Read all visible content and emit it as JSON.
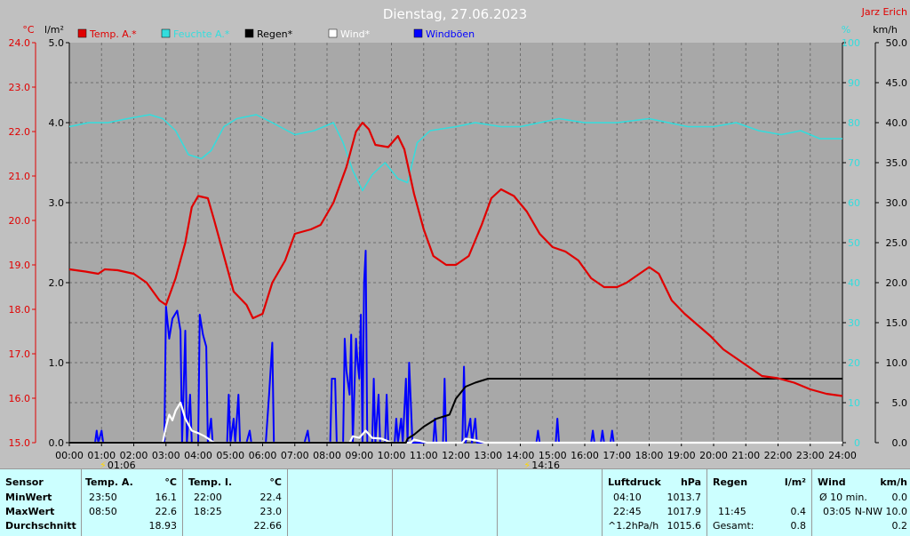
{
  "title": "Dienstag, 27.06.2023",
  "author": "Jarz Erich",
  "colors": {
    "bg": "#c0c0c0",
    "plot": "#a8a8a8",
    "grid": "#6e6e6e",
    "temp": "#e00000",
    "humidity": "#33dddd",
    "rain": "#000000",
    "wind": "#ffffff",
    "gust": "#0000ff",
    "title": "#ffffff",
    "panel": "#ccffff"
  },
  "axis_units": {
    "temp": "°C",
    "rain": "l/m²",
    "humidity": "%",
    "wind": "km/h"
  },
  "chart_data": {
    "type": "line",
    "title": "Dienstag, 27.06.2023",
    "x_ticks": [
      "00:00",
      "01:00",
      "02:00",
      "03:00",
      "04:00",
      "05:00",
      "06:00",
      "07:00",
      "08:00",
      "09:00",
      "10:00",
      "11:00",
      "12:00",
      "13:00",
      "14:00",
      "15:00",
      "16:00",
      "17:00",
      "18:00",
      "19:00",
      "20:00",
      "21:00",
      "22:00",
      "23:00",
      "24:00"
    ],
    "y_temp_ticks": [
      "15.0",
      "16.0",
      "17.0",
      "18.0",
      "19.0",
      "20.0",
      "21.0",
      "22.0",
      "23.0",
      "24.0"
    ],
    "y_rain_ticks": [
      "0.0",
      "1.0",
      "2.0",
      "3.0",
      "4.0",
      "5.0"
    ],
    "y_hum_ticks": [
      "0",
      "10",
      "20",
      "30",
      "40",
      "50",
      "60",
      "70",
      "80",
      "90",
      "100"
    ],
    "y_wind_ticks": [
      "0.0",
      "5.0",
      "10.0",
      "15.0",
      "20.0",
      "25.0",
      "30.0",
      "35.0",
      "40.0",
      "45.0",
      "50.0"
    ],
    "ylim_temp": [
      15,
      24
    ],
    "ylim_rain": [
      0,
      5
    ],
    "ylim_humidity": [
      0,
      100
    ],
    "ylim_wind": [
      0,
      50
    ],
    "legend": [
      "Temp. A.*",
      "Feuchte A.*",
      "Regen*",
      "Wind*",
      "Windböen"
    ],
    "annotations": [
      {
        "label": "01:06",
        "x": 1.1
      },
      {
        "label": "14:16",
        "x": 14.27
      }
    ],
    "grid": true,
    "series": [
      {
        "name": "Temp. A.*",
        "axis": "temp",
        "points": [
          [
            0,
            18.9
          ],
          [
            0.5,
            18.85
          ],
          [
            0.9,
            18.8
          ],
          [
            1.1,
            18.9
          ],
          [
            1.5,
            18.88
          ],
          [
            2.0,
            18.8
          ],
          [
            2.4,
            18.6
          ],
          [
            2.8,
            18.2
          ],
          [
            3.0,
            18.1
          ],
          [
            3.3,
            18.7
          ],
          [
            3.6,
            19.5
          ],
          [
            3.8,
            20.3
          ],
          [
            4.0,
            20.55
          ],
          [
            4.3,
            20.5
          ],
          [
            4.5,
            20.0
          ],
          [
            4.8,
            19.2
          ],
          [
            5.1,
            18.4
          ],
          [
            5.5,
            18.1
          ],
          [
            5.7,
            17.8
          ],
          [
            6.0,
            17.9
          ],
          [
            6.3,
            18.6
          ],
          [
            6.7,
            19.1
          ],
          [
            7.0,
            19.7
          ],
          [
            7.5,
            19.8
          ],
          [
            7.8,
            19.9
          ],
          [
            8.2,
            20.4
          ],
          [
            8.6,
            21.2
          ],
          [
            8.9,
            22.0
          ],
          [
            9.1,
            22.2
          ],
          [
            9.3,
            22.05
          ],
          [
            9.5,
            21.7
          ],
          [
            9.9,
            21.65
          ],
          [
            10.2,
            21.9
          ],
          [
            10.4,
            21.6
          ],
          [
            10.7,
            20.6
          ],
          [
            11.0,
            19.8
          ],
          [
            11.3,
            19.2
          ],
          [
            11.7,
            19.0
          ],
          [
            12.0,
            19.0
          ],
          [
            12.4,
            19.2
          ],
          [
            12.8,
            19.9
          ],
          [
            13.1,
            20.5
          ],
          [
            13.4,
            20.7
          ],
          [
            13.8,
            20.55
          ],
          [
            14.2,
            20.2
          ],
          [
            14.6,
            19.7
          ],
          [
            15.0,
            19.4
          ],
          [
            15.4,
            19.3
          ],
          [
            15.8,
            19.1
          ],
          [
            16.2,
            18.7
          ],
          [
            16.6,
            18.5
          ],
          [
            17.0,
            18.5
          ],
          [
            17.3,
            18.6
          ],
          [
            17.7,
            18.8
          ],
          [
            18.0,
            18.95
          ],
          [
            18.3,
            18.8
          ],
          [
            18.7,
            18.2
          ],
          [
            19.1,
            17.9
          ],
          [
            19.5,
            17.65
          ],
          [
            19.9,
            17.4
          ],
          [
            20.3,
            17.1
          ],
          [
            20.7,
            16.9
          ],
          [
            21.1,
            16.7
          ],
          [
            21.5,
            16.5
          ],
          [
            22.0,
            16.45
          ],
          [
            22.5,
            16.35
          ],
          [
            23.0,
            16.2
          ],
          [
            23.5,
            16.1
          ],
          [
            24,
            16.05
          ]
        ]
      },
      {
        "name": "Feuchte A.*",
        "axis": "humidity",
        "points": [
          [
            0,
            79
          ],
          [
            0.6,
            80
          ],
          [
            1.2,
            80
          ],
          [
            1.8,
            81
          ],
          [
            2.5,
            82
          ],
          [
            2.9,
            81
          ],
          [
            3.3,
            78
          ],
          [
            3.7,
            72
          ],
          [
            4.1,
            71
          ],
          [
            4.4,
            73
          ],
          [
            4.8,
            79
          ],
          [
            5.2,
            81
          ],
          [
            5.8,
            82
          ],
          [
            6.3,
            80
          ],
          [
            7.0,
            77
          ],
          [
            7.6,
            78
          ],
          [
            8.2,
            80
          ],
          [
            8.5,
            75
          ],
          [
            8.8,
            68
          ],
          [
            9.1,
            63
          ],
          [
            9.4,
            67
          ],
          [
            9.8,
            70
          ],
          [
            10.2,
            66
          ],
          [
            10.5,
            65
          ],
          [
            10.8,
            75
          ],
          [
            11.2,
            78
          ],
          [
            12.0,
            79
          ],
          [
            12.6,
            80
          ],
          [
            13.4,
            79
          ],
          [
            14.0,
            79
          ],
          [
            14.6,
            80
          ],
          [
            15.2,
            81
          ],
          [
            16.0,
            80
          ],
          [
            17.0,
            80
          ],
          [
            18.0,
            81
          ],
          [
            18.6,
            80
          ],
          [
            19.2,
            79
          ],
          [
            20.0,
            79
          ],
          [
            20.7,
            80
          ],
          [
            21.4,
            78
          ],
          [
            22.1,
            77
          ],
          [
            22.7,
            78
          ],
          [
            23.3,
            76
          ],
          [
            24,
            76
          ]
        ]
      },
      {
        "name": "Regen*",
        "axis": "rain",
        "points": [
          [
            0,
            0
          ],
          [
            10.45,
            0
          ],
          [
            10.5,
            0.05
          ],
          [
            10.7,
            0.1
          ],
          [
            11.0,
            0.2
          ],
          [
            11.4,
            0.3
          ],
          [
            11.8,
            0.35
          ],
          [
            12.0,
            0.55
          ],
          [
            12.3,
            0.7
          ],
          [
            12.6,
            0.75
          ],
          [
            13.0,
            0.8
          ],
          [
            24,
            0.8
          ]
        ]
      },
      {
        "name": "Wind*",
        "axis": "wind",
        "points": [
          [
            0,
            0
          ],
          [
            2.9,
            0
          ],
          [
            3.0,
            2.0
          ],
          [
            3.1,
            3.5
          ],
          [
            3.2,
            2.8
          ],
          [
            3.3,
            4.0
          ],
          [
            3.45,
            5.0
          ],
          [
            3.6,
            3.0
          ],
          [
            3.8,
            1.5
          ],
          [
            4.0,
            1.2
          ],
          [
            4.2,
            0.8
          ],
          [
            4.5,
            0
          ],
          [
            8.7,
            0
          ],
          [
            8.8,
            0.8
          ],
          [
            9.0,
            0.6
          ],
          [
            9.2,
            1.5
          ],
          [
            9.4,
            0.6
          ],
          [
            9.7,
            0.5
          ],
          [
            10.0,
            0
          ],
          [
            10.6,
            0
          ],
          [
            10.7,
            0.4
          ],
          [
            10.9,
            0.2
          ],
          [
            11.1,
            0
          ],
          [
            12.2,
            0
          ],
          [
            12.3,
            0.5
          ],
          [
            12.6,
            0.3
          ],
          [
            12.9,
            0
          ],
          [
            24,
            0
          ]
        ]
      },
      {
        "name": "Windböen",
        "axis": "wind",
        "points": [
          [
            0,
            0
          ],
          [
            0.8,
            0
          ],
          [
            0.85,
            1.5
          ],
          [
            0.9,
            0
          ],
          [
            1.0,
            1.5
          ],
          [
            1.05,
            0
          ],
          [
            2.95,
            0
          ],
          [
            3.0,
            17.0
          ],
          [
            3.1,
            13
          ],
          [
            3.2,
            15.5
          ],
          [
            3.35,
            16.5
          ],
          [
            3.45,
            14
          ],
          [
            3.5,
            0
          ],
          [
            3.6,
            14
          ],
          [
            3.65,
            0
          ],
          [
            3.75,
            6
          ],
          [
            3.8,
            0
          ],
          [
            4.0,
            0
          ],
          [
            4.05,
            16.0
          ],
          [
            4.15,
            13.5
          ],
          [
            4.25,
            12
          ],
          [
            4.3,
            0
          ],
          [
            4.4,
            3.0
          ],
          [
            4.45,
            0
          ],
          [
            4.9,
            0
          ],
          [
            4.95,
            6.0
          ],
          [
            5.0,
            0
          ],
          [
            5.1,
            3.0
          ],
          [
            5.15,
            0
          ],
          [
            5.25,
            6.0
          ],
          [
            5.3,
            0
          ],
          [
            5.5,
            0
          ],
          [
            5.6,
            1.5
          ],
          [
            5.65,
            0
          ],
          [
            6.1,
            0
          ],
          [
            6.2,
            6.0
          ],
          [
            6.3,
            12.5
          ],
          [
            6.35,
            0
          ],
          [
            7.3,
            0
          ],
          [
            7.4,
            1.5
          ],
          [
            7.45,
            0
          ],
          [
            8.1,
            0
          ],
          [
            8.15,
            8.0
          ],
          [
            8.25,
            8.0
          ],
          [
            8.3,
            0
          ],
          [
            8.5,
            0
          ],
          [
            8.55,
            13.0
          ],
          [
            8.6,
            9
          ],
          [
            8.7,
            6
          ],
          [
            8.75,
            13.5
          ],
          [
            8.8,
            0
          ],
          [
            8.9,
            13.0
          ],
          [
            8.95,
            10
          ],
          [
            9.0,
            8
          ],
          [
            9.05,
            16.0
          ],
          [
            9.1,
            0
          ],
          [
            9.15,
            20.0
          ],
          [
            9.2,
            24.0
          ],
          [
            9.25,
            0
          ],
          [
            9.4,
            0
          ],
          [
            9.45,
            8.0
          ],
          [
            9.5,
            0
          ],
          [
            9.6,
            6.0
          ],
          [
            9.65,
            0
          ],
          [
            9.8,
            0
          ],
          [
            9.85,
            6.0
          ],
          [
            9.9,
            0
          ],
          [
            10.1,
            0
          ],
          [
            10.15,
            3.0
          ],
          [
            10.2,
            0
          ],
          [
            10.3,
            3.0
          ],
          [
            10.35,
            0
          ],
          [
            10.45,
            8.0
          ],
          [
            10.5,
            0
          ],
          [
            10.55,
            10.0
          ],
          [
            10.6,
            5.0
          ],
          [
            10.65,
            0
          ],
          [
            11.3,
            0
          ],
          [
            11.35,
            3.0
          ],
          [
            11.4,
            0
          ],
          [
            11.6,
            0
          ],
          [
            11.65,
            8.0
          ],
          [
            11.7,
            0
          ],
          [
            12.2,
            0
          ],
          [
            12.25,
            9.5
          ],
          [
            12.3,
            0
          ],
          [
            12.45,
            3.0
          ],
          [
            12.5,
            0
          ],
          [
            12.6,
            3.0
          ],
          [
            12.65,
            0
          ],
          [
            14.5,
            0
          ],
          [
            14.55,
            1.5
          ],
          [
            14.6,
            0
          ],
          [
            15.1,
            0
          ],
          [
            15.15,
            3.0
          ],
          [
            15.2,
            0
          ],
          [
            16.2,
            0
          ],
          [
            16.25,
            1.5
          ],
          [
            16.3,
            0
          ],
          [
            16.5,
            0
          ],
          [
            16.55,
            1.5
          ],
          [
            16.6,
            0
          ],
          [
            16.8,
            0
          ],
          [
            16.85,
            1.5
          ],
          [
            16.9,
            0
          ],
          [
            24,
            0
          ]
        ]
      }
    ]
  },
  "stats": {
    "sensor": {
      "header": "Sensor",
      "rows": [
        "MinWert",
        "MaxWert",
        "Durchschnitt"
      ]
    },
    "temp_a": {
      "header": "Temp. A.",
      "unit": "°C",
      "min_time": "23:50",
      "min_val": "16.1",
      "max_time": "08:50",
      "max_val": "22.6",
      "avg": "18.93"
    },
    "temp_i": {
      "header": "Temp. I.",
      "unit": "°C",
      "min_time": "22:00",
      "min_val": "22.4",
      "max_time": "18:25",
      "max_val": "23.0",
      "avg": "22.66"
    },
    "pressure": {
      "header": "Luftdruck",
      "unit": "hPa",
      "min_time": "04:10",
      "min_val": "1013.7",
      "max_time": "22:45",
      "max_val": "1017.9",
      "trend_label": "^1.2hPa/h",
      "avg": "1015.6"
    },
    "rain": {
      "header": "Regen",
      "unit": "l/m²",
      "max_time": "11:45",
      "max_val": "0.4",
      "total_label": "Gesamt:",
      "total_val": "0.8"
    },
    "wind": {
      "header": "Wind",
      "unit": "km/h",
      "avg_label": "Ø 10 min.",
      "avg_val": "0.0",
      "max_time": "03:05",
      "max_val": "N-NW 10.0",
      "avg": "0.2"
    }
  }
}
